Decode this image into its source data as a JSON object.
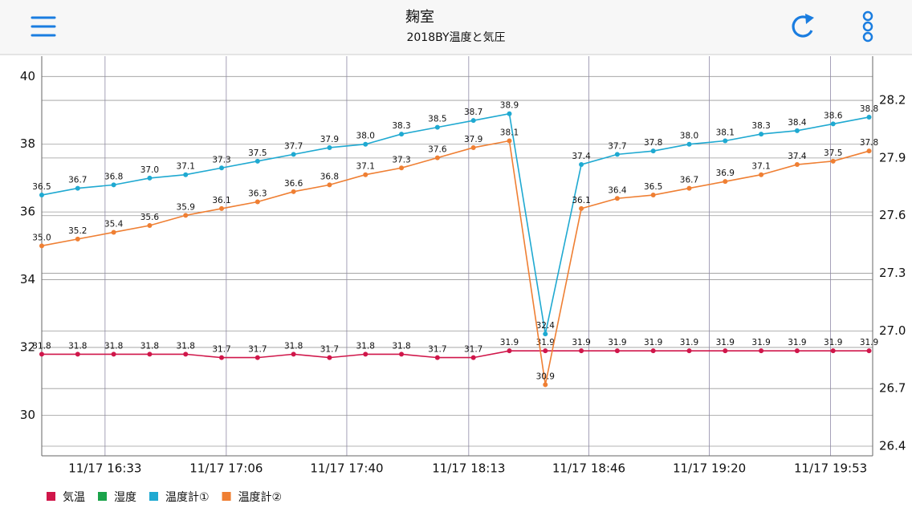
{
  "header": {
    "title": "麹室",
    "subtitle": "2018BY温度と気圧"
  },
  "chart_data": {
    "type": "line",
    "categories": [
      null,
      null,
      null,
      null,
      null,
      null,
      null,
      null,
      null,
      null,
      null,
      null,
      null,
      null,
      null,
      null,
      null,
      null,
      null,
      null,
      null,
      null,
      null,
      null
    ],
    "xlim": [
      0,
      23.1
    ],
    "xticks": [
      {
        "value": 1.76,
        "label": "11/17 16:33"
      },
      {
        "value": 5.13,
        "label": "11/17 17:06"
      },
      {
        "value": 8.48,
        "label": "11/17 17:40"
      },
      {
        "value": 11.87,
        "label": "11/17 18:13"
      },
      {
        "value": 15.21,
        "label": "11/17 18:46"
      },
      {
        "value": 18.56,
        "label": "11/17 19:20"
      },
      {
        "value": 21.93,
        "label": "11/17 19:53"
      }
    ],
    "ylim": [
      28.8,
      40.6
    ],
    "yticks": [
      30,
      32,
      34,
      36,
      38,
      40
    ],
    "y2lim": [
      26.35,
      28.43
    ],
    "y2ticks": [
      26.4,
      26.7,
      {
        "value": 27.0,
        "label": "27.0"
      },
      27.3,
      27.6,
      27.9,
      28.2
    ],
    "grid": true,
    "legend": "bottom-left",
    "series": [
      {
        "name": "気温",
        "color": "#d0164a",
        "values": [
          31.8,
          31.8,
          31.8,
          31.8,
          31.8,
          31.7,
          31.7,
          31.8,
          31.7,
          31.8,
          31.8,
          31.7,
          31.7,
          31.9,
          31.9,
          31.9,
          31.9,
          31.9,
          31.9,
          31.9,
          31.9,
          31.9,
          31.9,
          31.9
        ],
        "value_labels": [
          "31.8",
          "31.8",
          "31.8",
          "31.8",
          "31.8",
          "31.7",
          "31.7",
          "31.8",
          "31.7",
          "31.8",
          "31.8",
          "31.7",
          "31.7",
          "31.9",
          "31.9",
          "31.9",
          "31.9",
          "31.9",
          "31.9",
          "31.9",
          "31.9",
          "31.9",
          "31.9",
          "31.9"
        ]
      },
      {
        "name": "湿度",
        "color": "#1aa34a",
        "values": [
          null,
          null,
          null,
          null,
          null,
          null,
          null,
          null,
          null,
          null,
          null,
          null,
          null,
          null,
          null,
          null,
          null,
          null,
          null,
          null,
          null,
          null,
          null,
          null
        ]
      },
      {
        "name": "温度計①",
        "color": "#1fa9d1",
        "values": [
          36.5,
          36.7,
          36.8,
          37.0,
          37.1,
          37.3,
          37.5,
          37.7,
          37.9,
          38.0,
          38.3,
          38.5,
          38.7,
          38.9,
          32.4,
          37.4,
          37.7,
          37.8,
          38.0,
          38.1,
          38.3,
          38.4,
          38.6,
          38.8
        ],
        "value_labels": [
          "36.5",
          "36.7",
          "36.8",
          "37.0",
          "37.1",
          "37.3",
          "37.5",
          "37.7",
          "37.9",
          "38.0",
          "38.3",
          "38.5",
          "38.7",
          "38.9",
          "32.4",
          "37.4",
          "37.7",
          "37.8",
          "38.0",
          "38.1",
          "38.3",
          "38.4",
          "38.6",
          "38.8"
        ]
      },
      {
        "name": "温度計②",
        "color": "#ef7f33",
        "values": [
          35.0,
          35.2,
          35.4,
          35.6,
          35.9,
          36.1,
          36.3,
          36.6,
          36.8,
          37.1,
          37.3,
          37.6,
          37.9,
          38.1,
          30.9,
          36.1,
          36.4,
          36.5,
          36.7,
          36.9,
          37.1,
          37.4,
          37.5,
          37.8
        ],
        "value_labels": [
          "35.0",
          "35.2",
          "35.4",
          "35.6",
          "35.9",
          "36.1",
          "36.3",
          "36.6",
          "36.8",
          "37.1",
          "37.3",
          "37.6",
          "37.9",
          "38.1",
          "30.9",
          "36.1",
          "36.4",
          "36.5",
          "36.7",
          "36.9",
          "37.1",
          "37.4",
          "37.5",
          "37.8"
        ]
      }
    ]
  }
}
